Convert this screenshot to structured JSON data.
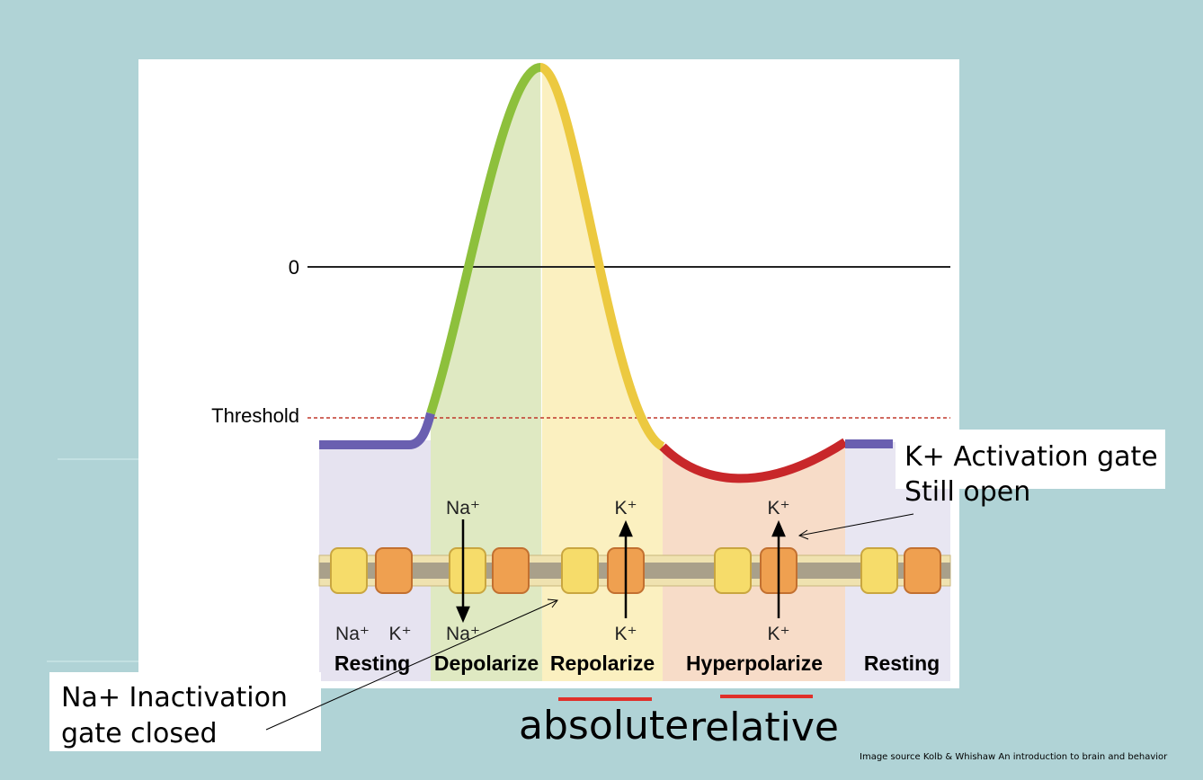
{
  "axis": {
    "zero_label": "0",
    "threshold_label": "Threshold"
  },
  "phases": [
    "Resting",
    "Depolarize",
    "Repolarize",
    "Hyperpolarize",
    "Resting"
  ],
  "ions": [
    "Na⁺",
    "Na⁺",
    "K⁺",
    "K⁺",
    "K⁺",
    "K⁺",
    "Na⁺",
    "K⁺"
  ],
  "callouts": {
    "k_gate": [
      "K+ Activation gate",
      "Still open"
    ],
    "na_gate": [
      "Na+ Inactivation",
      "gate closed"
    ]
  },
  "refractory": [
    "absolute",
    "relative"
  ],
  "source": "Image source Kolb & Whishaw An introduction to brain and behavior"
}
